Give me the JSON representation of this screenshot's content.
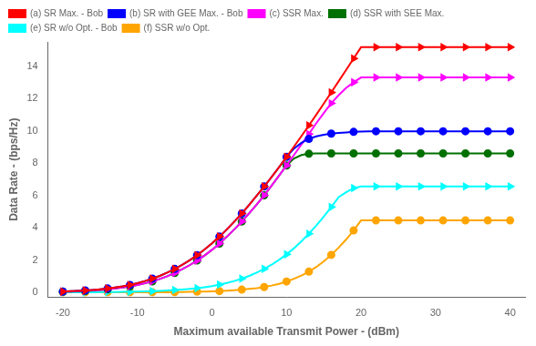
{
  "chart_data": {
    "type": "line",
    "xlabel": "Maximum available Transmit Power - (dBm)",
    "ylabel": "Data Rate - (bps/Hz)",
    "xlim": [
      -22,
      42
    ],
    "ylim": [
      -0.3,
      15.5
    ],
    "xticks": [
      -20,
      -10,
      0,
      10,
      20,
      30,
      40
    ],
    "yticks": [
      0,
      2,
      4,
      6,
      8,
      10,
      12,
      14
    ],
    "grid": false,
    "legend": "upper left",
    "x": [
      -20,
      -19,
      -18,
      -17,
      -16,
      -15,
      -14,
      -13,
      -12,
      -11,
      -10,
      -9,
      -8,
      -7,
      -6,
      -5,
      -4,
      -3,
      -2,
      -1,
      0,
      1,
      2,
      3,
      4,
      5,
      6,
      7,
      8,
      9,
      10,
      11,
      12,
      13,
      14,
      15,
      16,
      17,
      18,
      19,
      20,
      21,
      22,
      23,
      24,
      25,
      26,
      27,
      28,
      29,
      30,
      31,
      32,
      33,
      34,
      35,
      36,
      37,
      38,
      39,
      40
    ],
    "series": [
      {
        "name": "(a) SR Max. - Bob",
        "color": "#ff0000",
        "marker": "triangle-right",
        "line_style": "solid",
        "values": [
          0.05,
          0.07,
          0.09,
          0.12,
          0.15,
          0.19,
          0.24,
          0.3,
          0.37,
          0.46,
          0.57,
          0.7,
          0.85,
          1.02,
          1.22,
          1.45,
          1.7,
          1.98,
          2.3,
          2.65,
          3.03,
          3.45,
          3.9,
          4.38,
          4.88,
          5.42,
          5.98,
          6.55,
          7.14,
          7.75,
          8.38,
          9.02,
          9.67,
          10.33,
          11.0,
          11.68,
          12.37,
          13.07,
          13.77,
          14.47,
          15.17,
          15.17,
          15.17,
          15.17,
          15.17,
          15.17,
          15.17,
          15.17,
          15.17,
          15.17,
          15.17,
          15.17,
          15.17,
          15.17,
          15.17,
          15.17,
          15.17,
          15.17,
          15.17,
          15.17,
          15.17
        ]
      },
      {
        "name": "(b) SR with GEE Max. - Bob",
        "color": "#0000ff",
        "marker": "circle",
        "line_style": "solid",
        "values": [
          0.05,
          0.07,
          0.09,
          0.12,
          0.15,
          0.19,
          0.24,
          0.3,
          0.37,
          0.46,
          0.57,
          0.7,
          0.85,
          1.02,
          1.22,
          1.45,
          1.7,
          1.98,
          2.3,
          2.65,
          3.03,
          3.45,
          3.9,
          4.38,
          4.88,
          5.42,
          5.98,
          6.55,
          7.14,
          7.75,
          8.38,
          8.9,
          9.25,
          9.5,
          9.65,
          9.75,
          9.82,
          9.87,
          9.9,
          9.93,
          9.95,
          9.96,
          9.97,
          9.97,
          9.97,
          9.97,
          9.97,
          9.97,
          9.97,
          9.97,
          9.97,
          9.97,
          9.97,
          9.97,
          9.97,
          9.97,
          9.97,
          9.97,
          9.97,
          9.97,
          9.97
        ]
      },
      {
        "name": "(c) SSR Max.",
        "color": "#ff00ff",
        "marker": "triangle-right",
        "line_style": "solid",
        "values": [
          0.04,
          0.05,
          0.07,
          0.09,
          0.12,
          0.15,
          0.19,
          0.24,
          0.3,
          0.37,
          0.45,
          0.56,
          0.68,
          0.83,
          1.0,
          1.2,
          1.43,
          1.68,
          1.97,
          2.28,
          2.63,
          3.02,
          3.45,
          3.9,
          4.38,
          4.9,
          5.43,
          6.0,
          6.6,
          7.22,
          7.85,
          8.5,
          9.15,
          9.8,
          10.47,
          11.1,
          11.7,
          12.2,
          12.65,
          13.0,
          13.3,
          13.3,
          13.3,
          13.3,
          13.3,
          13.3,
          13.3,
          13.3,
          13.3,
          13.3,
          13.3,
          13.3,
          13.3,
          13.3,
          13.3,
          13.3,
          13.3,
          13.3,
          13.3,
          13.3,
          13.3
        ]
      },
      {
        "name": "(d) SSR with SEE Max.",
        "color": "#007000",
        "marker": "circle",
        "line_style": "solid",
        "values": [
          0.04,
          0.05,
          0.07,
          0.09,
          0.12,
          0.15,
          0.19,
          0.24,
          0.3,
          0.37,
          0.45,
          0.56,
          0.68,
          0.83,
          1.0,
          1.2,
          1.43,
          1.68,
          1.97,
          2.28,
          2.63,
          3.02,
          3.45,
          3.9,
          4.38,
          4.9,
          5.43,
          6.0,
          6.6,
          7.22,
          7.85,
          8.28,
          8.5,
          8.58,
          8.6,
          8.6,
          8.6,
          8.6,
          8.6,
          8.6,
          8.6,
          8.6,
          8.6,
          8.6,
          8.6,
          8.6,
          8.6,
          8.6,
          8.6,
          8.6,
          8.6,
          8.6,
          8.6,
          8.6,
          8.6,
          8.6,
          8.6,
          8.6,
          8.6,
          8.6,
          8.6
        ]
      },
      {
        "name": "(e) SR w/o Opt. - Bob",
        "color": "#00ffff",
        "marker": "triangle-right",
        "line_style": "solid",
        "values": [
          0.01,
          0.01,
          0.01,
          0.01,
          0.01,
          0.02,
          0.02,
          0.02,
          0.03,
          0.04,
          0.05,
          0.06,
          0.07,
          0.09,
          0.11,
          0.14,
          0.17,
          0.21,
          0.26,
          0.32,
          0.39,
          0.48,
          0.58,
          0.7,
          0.85,
          1.02,
          1.22,
          1.45,
          1.71,
          2.01,
          2.35,
          2.73,
          3.16,
          3.63,
          4.14,
          4.69,
          5.28,
          5.9,
          6.2,
          6.45,
          6.55,
          6.55,
          6.55,
          6.55,
          6.55,
          6.55,
          6.55,
          6.55,
          6.55,
          6.55,
          6.55,
          6.55,
          6.55,
          6.55,
          6.55,
          6.55,
          6.55,
          6.55,
          6.55,
          6.55,
          6.55
        ]
      },
      {
        "name": "(f) SSR w/o Opt.",
        "color": "#ffa500",
        "marker": "circle",
        "line_style": "solid",
        "values": [
          0.01,
          0.01,
          0.01,
          0.01,
          0.01,
          0.01,
          0.01,
          0.01,
          0.01,
          0.01,
          0.01,
          0.01,
          0.01,
          0.01,
          0.01,
          0.02,
          0.02,
          0.03,
          0.04,
          0.05,
          0.06,
          0.08,
          0.1,
          0.13,
          0.17,
          0.21,
          0.26,
          0.33,
          0.42,
          0.53,
          0.67,
          0.84,
          1.04,
          1.28,
          1.57,
          1.92,
          2.32,
          2.77,
          3.27,
          3.83,
          4.45,
          4.45,
          4.45,
          4.45,
          4.45,
          4.45,
          4.45,
          4.45,
          4.45,
          4.45,
          4.45,
          4.45,
          4.45,
          4.45,
          4.45,
          4.45,
          4.45,
          4.45,
          4.45,
          4.45,
          4.45
        ]
      }
    ]
  }
}
